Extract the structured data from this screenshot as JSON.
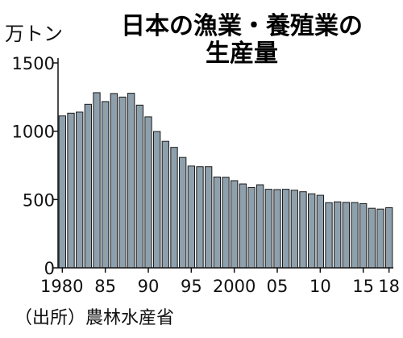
{
  "chart_data": {
    "type": "bar",
    "title_lines": [
      "日本の漁業・養殖業の",
      "生産量"
    ],
    "unit_label": "万トン",
    "source": "（出所）農林水産省",
    "xlabel": "",
    "ylabel": "",
    "ylim": [
      0,
      1500
    ],
    "y_ticks": [
      "0",
      "500",
      "1000",
      "1500"
    ],
    "y_tick_values": [
      0,
      500,
      1000,
      1500
    ],
    "x_tick_labels": [
      {
        "year": 1980,
        "label": "1980"
      },
      {
        "year": 1985,
        "label": "85"
      },
      {
        "year": 1990,
        "label": "90"
      },
      {
        "year": 1995,
        "label": "95"
      },
      {
        "year": 2000,
        "label": "2000"
      },
      {
        "year": 2005,
        "label": "05"
      },
      {
        "year": 2010,
        "label": "10"
      },
      {
        "year": 2015,
        "label": "15"
      },
      {
        "year": 2018,
        "label": "18"
      }
    ],
    "years": [
      1980,
      1981,
      1982,
      1983,
      1984,
      1985,
      1986,
      1987,
      1988,
      1989,
      1990,
      1991,
      1992,
      1993,
      1994,
      1995,
      1996,
      1997,
      1998,
      1999,
      2000,
      2001,
      2002,
      2003,
      2004,
      2005,
      2006,
      2007,
      2008,
      2009,
      2010,
      2011,
      2012,
      2013,
      2014,
      2015,
      2016,
      2017,
      2018
    ],
    "values": [
      1112,
      1132,
      1140,
      1197,
      1282,
      1217,
      1276,
      1250,
      1278,
      1191,
      1105,
      998,
      926,
      882,
      808,
      745,
      740,
      740,
      665,
      663,
      638,
      614,
      588,
      608,
      575,
      573,
      575,
      568,
      557,
      542,
      531,
      477,
      483,
      479,
      478,
      470,
      436,
      430,
      440
    ],
    "bar_color": "#8fa0ad",
    "bar_stroke": "#1a1a1a"
  }
}
